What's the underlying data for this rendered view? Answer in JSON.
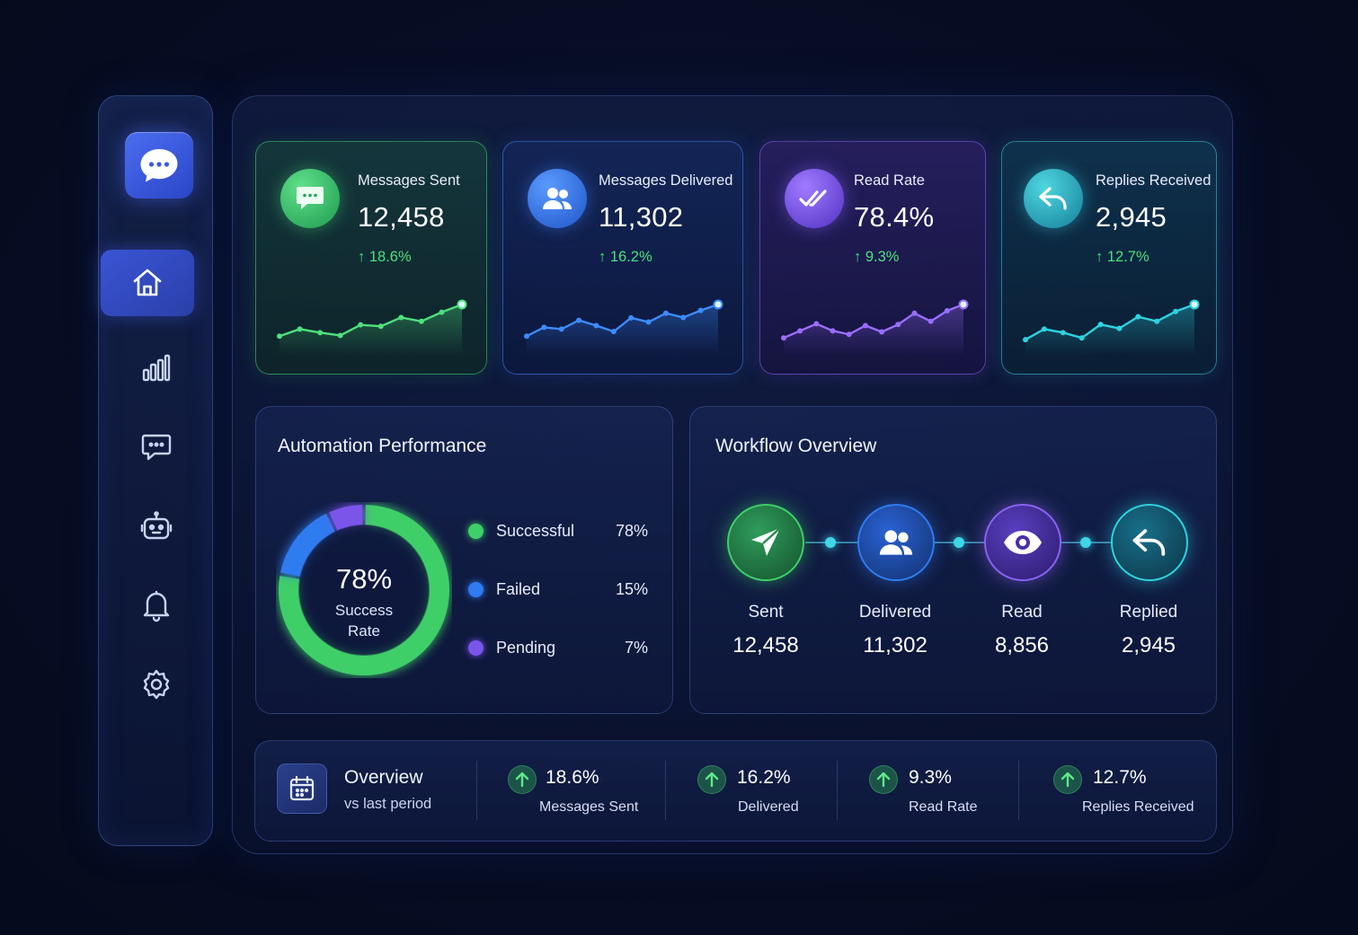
{
  "sidebar": {
    "logo_icon": "chat-bubble-icon",
    "items": [
      {
        "name": "home",
        "icon": "home-icon",
        "active": true
      },
      {
        "name": "analytics",
        "icon": "bar-chart-icon",
        "active": false
      },
      {
        "name": "messages",
        "icon": "chat-icon",
        "active": false
      },
      {
        "name": "bots",
        "icon": "robot-icon",
        "active": false
      },
      {
        "name": "notifications",
        "icon": "bell-icon",
        "active": false
      },
      {
        "name": "settings",
        "icon": "gear-icon",
        "active": false
      }
    ]
  },
  "stats": [
    {
      "label": "Messages Sent",
      "value": "12,458",
      "delta": "18.6%",
      "icon": "chat-icon",
      "color": "#4ee07c",
      "trend": [
        3,
        5,
        4,
        3.2,
        6.2,
        5.8,
        8.3,
        7.2,
        9.8,
        12
      ]
    },
    {
      "label": "Messages Delivered",
      "value": "11,302",
      "delta": "16.2%",
      "icon": "users-icon",
      "color": "#3d8bff",
      "trend": [
        3,
        5.5,
        5,
        7.5,
        6,
        4.3,
        8.2,
        7,
        9.5,
        8.3,
        10.3,
        12
      ]
    },
    {
      "label": "Read Rate",
      "value": "78.4%",
      "delta": "9.3%",
      "icon": "double-check-icon",
      "color": "#9a6dff",
      "trend": [
        2.5,
        4.5,
        6.5,
        4.5,
        3.5,
        6,
        4.2,
        6.3,
        9.5,
        7.2,
        10.2,
        12
      ]
    },
    {
      "label": "Replies Received",
      "value": "2,945",
      "delta": "12.7%",
      "icon": "reply-icon",
      "color": "#2ed3e0",
      "trend": [
        2,
        5,
        4,
        2.5,
        6.3,
        5.2,
        8.5,
        7.2,
        10,
        12
      ]
    }
  ],
  "automation": {
    "title": "Automation Performance",
    "center_value": "78%",
    "center_label_1": "Success",
    "center_label_2": "Rate",
    "segments": [
      {
        "label": "Successful",
        "value": "78%",
        "pct": 78,
        "color": "#3fcf68"
      },
      {
        "label": "Failed",
        "value": "15%",
        "pct": 15,
        "color": "#2f7bf0"
      },
      {
        "label": "Pending",
        "value": "7%",
        "pct": 7,
        "color": "#7b55ea"
      }
    ]
  },
  "workflow": {
    "title": "Workflow Overview",
    "steps": [
      {
        "label": "Sent",
        "value": "12,458",
        "icon": "send-icon",
        "color": "#3fcf68"
      },
      {
        "label": "Delivered",
        "value": "11,302",
        "icon": "users-icon",
        "color": "#2f7bf0"
      },
      {
        "label": "Read",
        "value": "8,856",
        "icon": "eye-icon",
        "color": "#8a62f2"
      },
      {
        "label": "Replied",
        "value": "2,945",
        "icon": "reply-icon",
        "color": "#2ed3e0"
      }
    ]
  },
  "overview": {
    "title": "Overview",
    "subtitle": "vs last period",
    "icon": "calendar-icon",
    "items": [
      {
        "value": "18.6%",
        "label": "Messages Sent"
      },
      {
        "value": "16.2%",
        "label": "Delivered"
      },
      {
        "value": "9.3%",
        "label": "Read Rate"
      },
      {
        "value": "12.7%",
        "label": "Replies Received"
      }
    ]
  }
}
